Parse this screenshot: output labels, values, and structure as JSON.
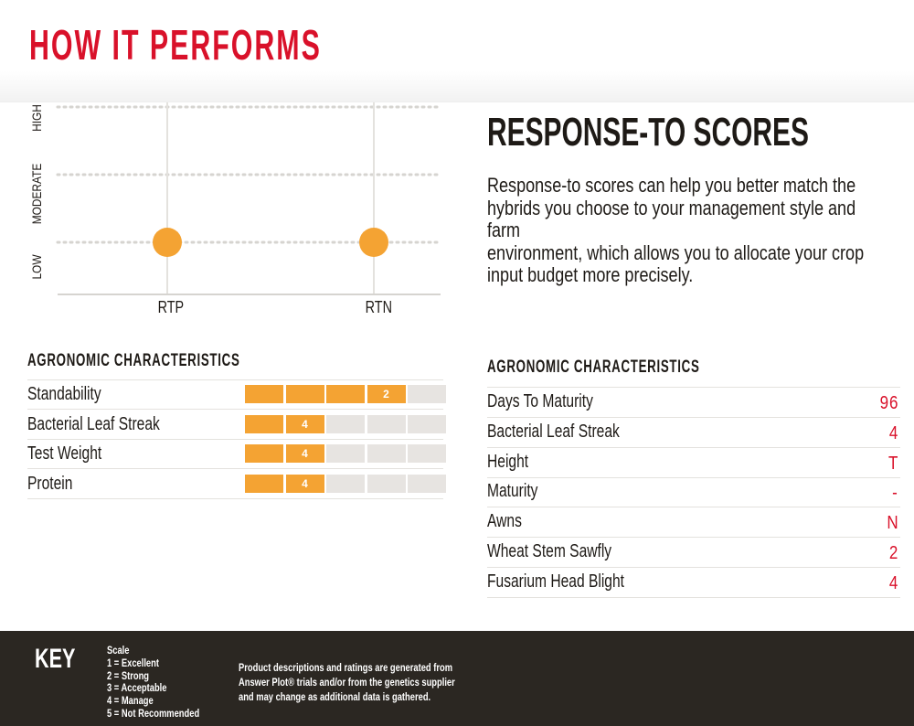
{
  "header": {
    "title": "HOW IT PERFORMS"
  },
  "chart_data": {
    "type": "scatter",
    "categories": [
      "RTP",
      "RTN"
    ],
    "y_levels": [
      "LOW",
      "MODERATE",
      "HIGH"
    ],
    "series": [
      {
        "values": [
          "LOW",
          "LOW"
        ]
      }
    ],
    "point_color": "#f4a333"
  },
  "response_scores": {
    "title": "RESPONSE-TO SCORES",
    "description_lines": [
      "Response-to scores can help you better match the",
      "hybrids you choose to your management style and farm",
      "environment, which allows you to allocate your crop",
      "input budget more precisely."
    ]
  },
  "agronomic_left": {
    "heading": "AGRONOMIC CHARACTERISTICS",
    "rows": [
      {
        "name": "Standability",
        "score": 2,
        "filled": 4
      },
      {
        "name": "Bacterial Leaf Streak",
        "score": 4,
        "filled": 2
      },
      {
        "name": "Test Weight",
        "score": 4,
        "filled": 2
      },
      {
        "name": "Protein",
        "score": 4,
        "filled": 2
      }
    ]
  },
  "agronomic_right": {
    "heading": "AGRONOMIC CHARACTERISTICS",
    "rows": [
      {
        "name": "Days To Maturity",
        "value": "96"
      },
      {
        "name": "Bacterial Leaf Streak",
        "value": "4"
      },
      {
        "name": "Height",
        "value": "T"
      },
      {
        "name": "Maturity",
        "value": "-"
      },
      {
        "name": "Awns",
        "value": "N"
      },
      {
        "name": "Wheat Stem Sawfly",
        "value": "2"
      },
      {
        "name": "Fusarium Head Blight",
        "value": "4"
      }
    ]
  },
  "key": {
    "title": "KEY",
    "scale_lines": [
      "Scale",
      "1 = Excellent",
      "2 = Strong",
      "3 = Acceptable",
      "4 = Manage",
      "5 = Not Recommended"
    ],
    "disclaimer_lines": [
      "Product descriptions and ratings are generated from",
      "Answer Plot® trials and/or from the genetics supplier",
      "and may change as additional data is gathered."
    ]
  },
  "colors": {
    "brand_red": "#d9112a",
    "accent_orange": "#f4a333",
    "footer_bg": "#2b2722",
    "bar_empty": "#e7e4e1"
  }
}
